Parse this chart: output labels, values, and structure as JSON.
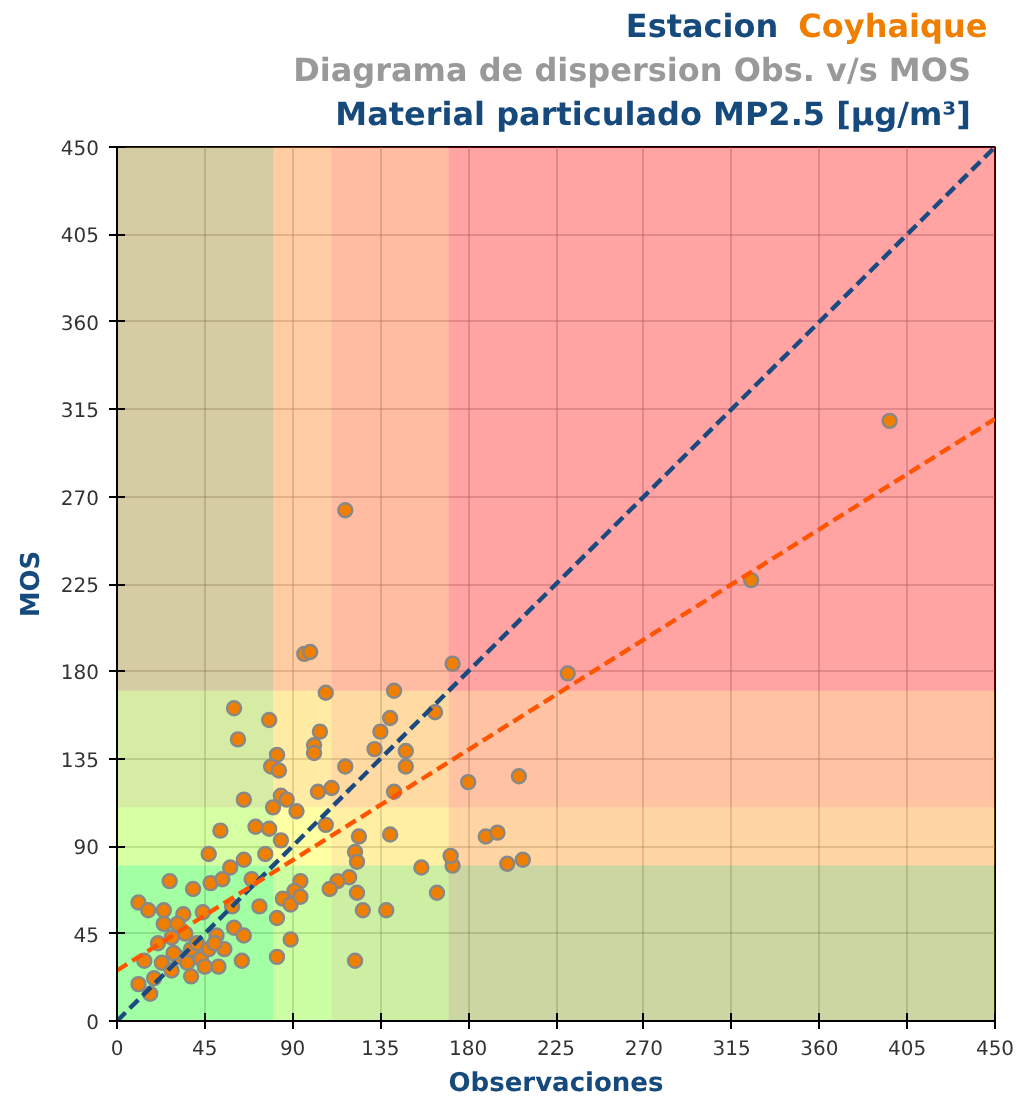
{
  "chart_data": {
    "type": "scatter",
    "title": "Estacion Coyhaique",
    "subtitle": "Diagrama de dispersion Obs. v/s MOS",
    "annotations": [
      "Material particulado MP2.5 [μg/m³]"
    ],
    "xlabel": "Observaciones",
    "ylabel": "MOS",
    "xlim": [
      0,
      450
    ],
    "ylim": [
      0,
      450
    ],
    "xticks": [
      0,
      45,
      90,
      135,
      180,
      225,
      270,
      315,
      360,
      405,
      450
    ],
    "yticks": [
      0,
      45,
      90,
      135,
      180,
      225,
      270,
      315,
      360,
      405,
      450
    ],
    "grid": true,
    "bands": [
      {
        "axis": "x",
        "from": 0,
        "to": 80,
        "color": "#00ff00"
      },
      {
        "axis": "x",
        "from": 80,
        "to": 110,
        "color": "#ffff00"
      },
      {
        "axis": "x",
        "from": 110,
        "to": 170,
        "color": "#ff9900"
      },
      {
        "axis": "x",
        "from": 170,
        "to": 450,
        "color": "#ff0000"
      },
      {
        "axis": "y",
        "from": 0,
        "to": 80,
        "color": "#00ff00"
      },
      {
        "axis": "y",
        "from": 80,
        "to": 110,
        "color": "#ffff00"
      },
      {
        "axis": "y",
        "from": 110,
        "to": 170,
        "color": "#ff9900"
      },
      {
        "axis": "y",
        "from": 170,
        "to": 450,
        "color": "#ff0000"
      }
    ],
    "series": [
      {
        "color": "#f07f00",
        "marker": "circle",
        "x": [
          96,
          99,
          172,
          231,
          107,
          142,
          60,
          78,
          62,
          104,
          101,
          101,
          140,
          135,
          163,
          132,
          148,
          148,
          117,
          82,
          79,
          83,
          84,
          65,
          87,
          80,
          92,
          110,
          103,
          142,
          180,
          206,
          107,
          71,
          78,
          53,
          124,
          140,
          189,
          195,
          84,
          47,
          76,
          122,
          123,
          65,
          58,
          156,
          172,
          171,
          200,
          208,
          119,
          113,
          109,
          94,
          27,
          39,
          48,
          54,
          69,
          91,
          85,
          89,
          94,
          123,
          126,
          138,
          164,
          11,
          16,
          24,
          34,
          44,
          59,
          73,
          82,
          60,
          65,
          89,
          51,
          52,
          82,
          64,
          122,
          11,
          17,
          14,
          21,
          28,
          31,
          35,
          38,
          41,
          23,
          28,
          31,
          36,
          43,
          47,
          24,
          29,
          19,
          45,
          38,
          55,
          50,
          117,
          396,
          325
        ],
        "values": [
          189,
          190,
          184,
          179,
          169,
          170,
          161,
          155,
          145,
          149,
          142,
          138,
          156,
          149,
          159,
          140,
          139,
          131,
          131,
          137,
          131,
          129,
          116,
          114,
          114,
          110,
          108,
          120,
          118,
          118,
          123,
          126,
          101,
          100,
          99,
          98,
          95,
          96,
          95,
          97,
          93,
          86,
          86,
          87,
          82,
          83,
          79,
          79,
          80,
          85,
          81,
          83,
          74,
          72,
          68,
          72,
          72,
          68,
          71,
          73,
          73,
          67,
          63,
          60,
          64,
          66,
          57,
          57,
          66,
          61,
          57,
          57,
          55,
          56,
          59,
          59,
          53,
          48,
          44,
          42,
          44,
          28,
          33,
          31,
          31,
          19,
          14,
          31,
          40,
          43,
          50,
          45,
          37,
          40,
          30,
          26,
          33,
          30,
          32,
          37,
          50,
          35,
          22,
          28,
          23,
          37,
          40,
          263,
          309,
          227
        ]
      },
      {
        "type": "line",
        "color": "#1a4a80",
        "line_style": "dashed",
        "x": [
          0,
          450
        ],
        "values": [
          0,
          450
        ]
      },
      {
        "type": "line",
        "color": "#ff5500",
        "line_style": "dashed",
        "x": [
          0,
          450
        ],
        "values": [
          26,
          310
        ]
      }
    ]
  }
}
